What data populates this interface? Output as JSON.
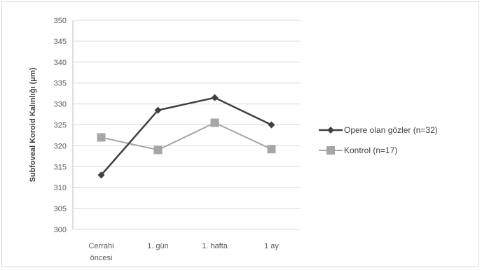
{
  "chart_data": {
    "type": "line",
    "title": "",
    "xlabel": "",
    "ylabel": "Subfoveal Koroid Kalınlığı (μm)",
    "categories": [
      "Cerrahi öncesi",
      "1. gün",
      "1. hafta",
      "1 ay"
    ],
    "category_lines": [
      [
        "Cerrahi",
        "öncesi"
      ],
      [
        "1. gün"
      ],
      [
        "1. hafta"
      ],
      [
        "1 ay"
      ]
    ],
    "ylim": [
      300,
      350
    ],
    "yticks": [
      300,
      305,
      310,
      315,
      320,
      325,
      330,
      335,
      340,
      345,
      350
    ],
    "grid": true,
    "legend_position": "right",
    "series": [
      {
        "name": "Opere olan gözler (n=32)",
        "values": [
          313,
          328.5,
          331.5,
          325
        ],
        "color": "#404040",
        "marker": "diamond"
      },
      {
        "name": "Kontrol (n=17)",
        "values": [
          322,
          319,
          325.5,
          319.2
        ],
        "color": "#a6a6a6",
        "marker": "square"
      }
    ]
  }
}
